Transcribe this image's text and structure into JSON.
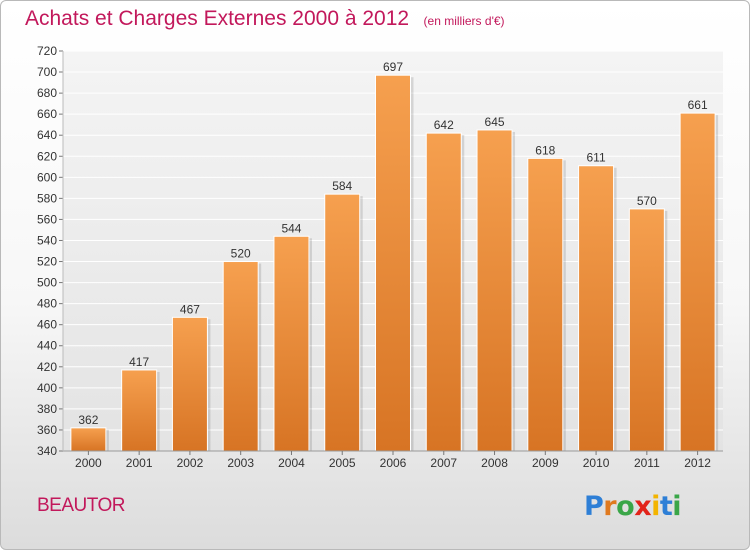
{
  "header": {
    "title": "Achats et Charges Externes 2000 à 2012",
    "unit": "(en milliers d'€)"
  },
  "footer": {
    "town": "BEAUTOR",
    "logo_text": "Proxiti",
    "logo_colors": [
      "#2e7fd6",
      "#e07a1f",
      "#3aa648",
      "#e2231a",
      "#f3b400",
      "#2e7fd6",
      "#3aa648"
    ]
  },
  "colors": {
    "accent": "#c2185b",
    "bar_top": "#f6a04f",
    "bar_bottom": "#d77424"
  },
  "chart_data": {
    "type": "bar",
    "title": "Achats et Charges Externes 2000 à 2012",
    "subtitle": "(en milliers d'€)",
    "xlabel": "",
    "ylabel": "",
    "categories": [
      "2000",
      "2001",
      "2002",
      "2003",
      "2004",
      "2005",
      "2006",
      "2007",
      "2008",
      "2009",
      "2010",
      "2011",
      "2012"
    ],
    "values": [
      362,
      417,
      467,
      520,
      544,
      584,
      697,
      642,
      645,
      618,
      611,
      570,
      661
    ],
    "ylim": [
      340,
      720
    ],
    "ytick_step": 20,
    "grid": true,
    "data_labels": true
  }
}
